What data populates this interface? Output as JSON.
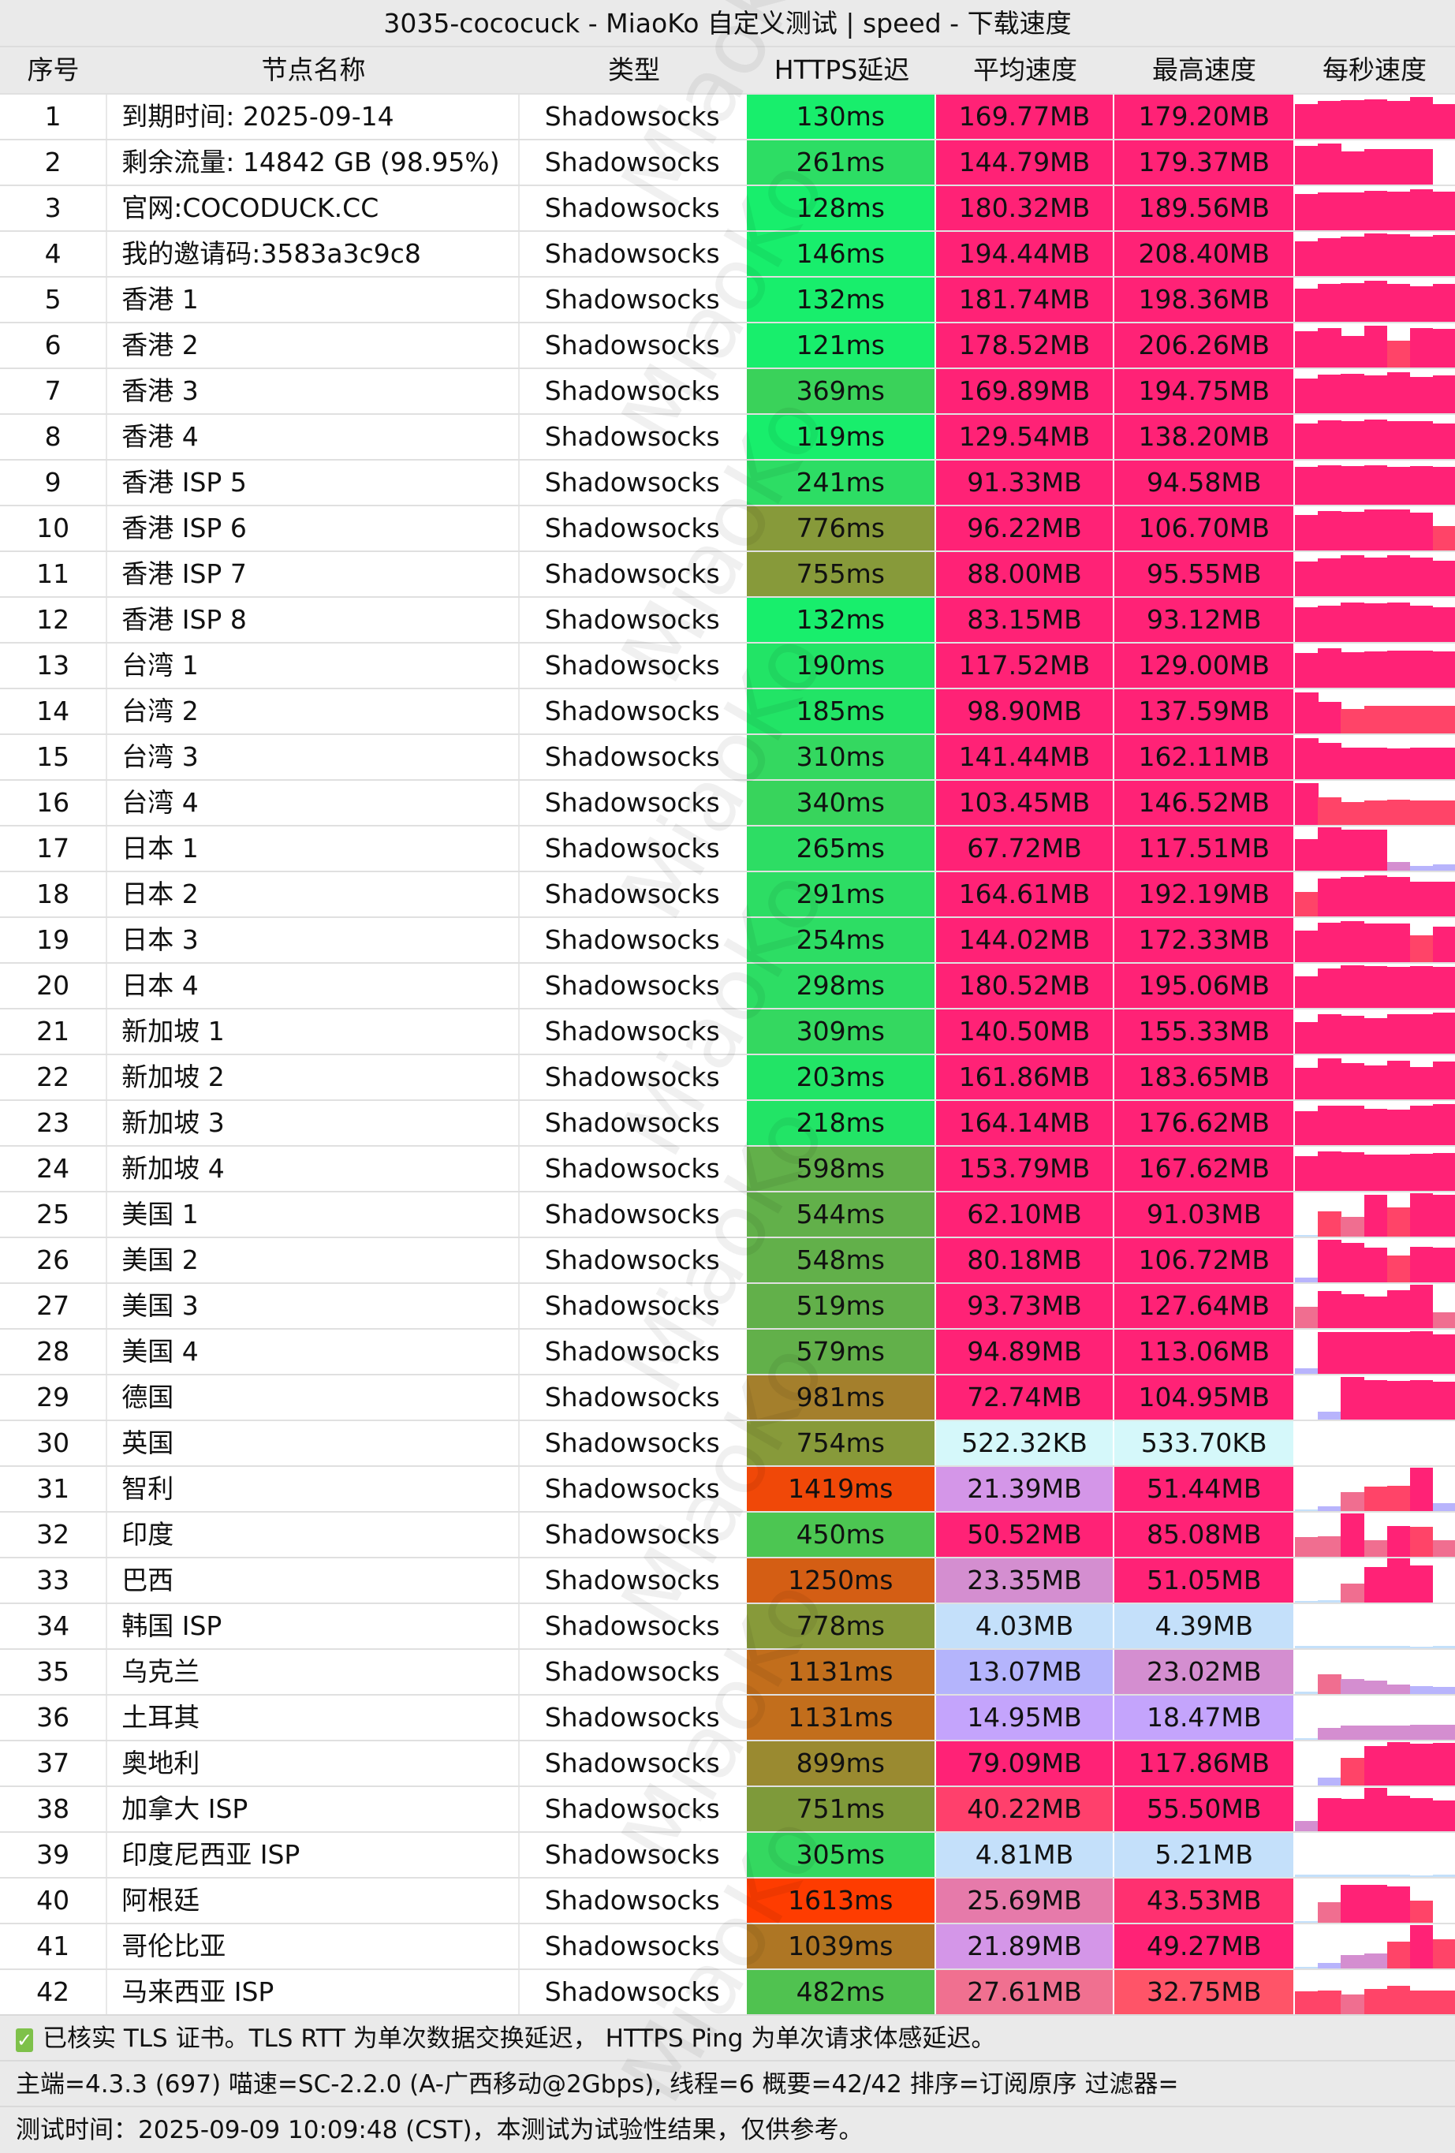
{
  "title": "3035-cococuck - MiaoKo 自定义测试 | speed - 下载速度",
  "headers": [
    "序号",
    "节点名称",
    "类型",
    "HTTPS延迟",
    "平均速度",
    "最高速度",
    "每秒速度"
  ],
  "watermark": "MiaoKo",
  "rows": [
    {
      "idx": "1",
      "name": "到期时间: 2025-09-14",
      "type": "Shadowsocks",
      "latency": "130ms",
      "avg": "169.77MB",
      "max": "179.20MB",
      "lat_color": "#18ee6c",
      "avg_color": "#ff2276",
      "max_color": "#ff2276",
      "bars": [
        0.78,
        0.86,
        0.88,
        0.9,
        0.86,
        0.95,
        0.78
      ]
    },
    {
      "idx": "2",
      "name": "剩余流量: 14842 GB (98.95%)",
      "type": "Shadowsocks",
      "latency": "261ms",
      "avg": "144.79MB",
      "max": "179.37MB",
      "lat_color": "#2ddd64",
      "avg_color": "#ff2276",
      "max_color": "#ff2276",
      "bars": [
        0.88,
        0.92,
        0.75,
        0.8,
        0.8,
        0.8,
        0
      ]
    },
    {
      "idx": "3",
      "name": "官网:COCODUCK.CC",
      "type": "Shadowsocks",
      "latency": "128ms",
      "avg": "180.32MB",
      "max": "189.56MB",
      "lat_color": "#18ee6c",
      "avg_color": "#ff2276",
      "max_color": "#ff2276",
      "bars": [
        0.82,
        0.86,
        0.86,
        0.9,
        0.88,
        0.92,
        0.88
      ]
    },
    {
      "idx": "4",
      "name": "我的邀请码:3583a3c9c8",
      "type": "Shadowsocks",
      "latency": "146ms",
      "avg": "194.44MB",
      "max": "208.40MB",
      "lat_color": "#18ee6c",
      "avg_color": "#ff2276",
      "max_color": "#ff2276",
      "bars": [
        0.78,
        0.86,
        0.9,
        0.96,
        0.95,
        0.9,
        0.92
      ]
    },
    {
      "idx": "5",
      "name": "香港 1",
      "type": "Shadowsocks",
      "latency": "132ms",
      "avg": "181.74MB",
      "max": "198.36MB",
      "lat_color": "#18ee6c",
      "avg_color": "#ff2276",
      "max_color": "#ff2276",
      "bars": [
        0.75,
        0.86,
        0.88,
        0.92,
        0.85,
        0.8,
        0.85
      ]
    },
    {
      "idx": "6",
      "name": "香港 2",
      "type": "Shadowsocks",
      "latency": "121ms",
      "avg": "178.52MB",
      "max": "206.26MB",
      "lat_color": "#18ee6c",
      "avg_color": "#ff2276",
      "max_color": "#ff2276",
      "bars": [
        0.82,
        0.9,
        0.72,
        0.95,
        0.6,
        0.9,
        0.88
      ]
    },
    {
      "idx": "7",
      "name": "香港 3",
      "type": "Shadowsocks",
      "latency": "369ms",
      "avg": "169.89MB",
      "max": "194.75MB",
      "lat_color": "#3ad25a",
      "avg_color": "#ff2276",
      "max_color": "#ff2276",
      "bars": [
        0.78,
        0.88,
        0.9,
        0.86,
        0.92,
        0.82,
        0.85
      ]
    },
    {
      "idx": "8",
      "name": "香港 4",
      "type": "Shadowsocks",
      "latency": "119ms",
      "avg": "129.54MB",
      "max": "138.20MB",
      "lat_color": "#18ee6c",
      "avg_color": "#ff2276",
      "max_color": "#ff2276",
      "bars": [
        0.8,
        0.88,
        0.86,
        0.9,
        0.85,
        0.86,
        0.8
      ]
    },
    {
      "idx": "9",
      "name": "香港 ISP 5",
      "type": "Shadowsocks",
      "latency": "241ms",
      "avg": "91.33MB",
      "max": "94.58MB",
      "lat_color": "#2ddd64",
      "avg_color": "#ff2276",
      "max_color": "#ff2276",
      "bars": [
        0.85,
        0.9,
        0.88,
        0.9,
        0.86,
        0.88,
        0.85
      ]
    },
    {
      "idx": "10",
      "name": "香港 ISP 6",
      "type": "Shadowsocks",
      "latency": "776ms",
      "avg": "96.22MB",
      "max": "106.70MB",
      "lat_color": "#879a3a",
      "avg_color": "#ff2276",
      "max_color": "#ff2276",
      "bars": [
        0.8,
        0.9,
        0.88,
        0.92,
        0.92,
        0.86,
        0.55
      ]
    },
    {
      "idx": "11",
      "name": "香港 ISP 7",
      "type": "Shadowsocks",
      "latency": "755ms",
      "avg": "88.00MB",
      "max": "95.55MB",
      "lat_color": "#879a3a",
      "avg_color": "#ff2276",
      "max_color": "#ff2276",
      "bars": [
        0.78,
        0.86,
        0.92,
        0.88,
        0.92,
        0.88,
        0.8
      ]
    },
    {
      "idx": "12",
      "name": "香港 ISP 8",
      "type": "Shadowsocks",
      "latency": "132ms",
      "avg": "83.15MB",
      "max": "93.12MB",
      "lat_color": "#18ee6c",
      "avg_color": "#ff2276",
      "max_color": "#ff2276",
      "bars": [
        0.78,
        0.82,
        0.9,
        0.88,
        0.9,
        0.82,
        0.78
      ]
    },
    {
      "idx": "13",
      "name": "台湾 1",
      "type": "Shadowsocks",
      "latency": "190ms",
      "avg": "117.52MB",
      "max": "129.00MB",
      "lat_color": "#22e466",
      "avg_color": "#ff2276",
      "max_color": "#ff2276",
      "bars": [
        0.78,
        0.9,
        0.8,
        0.82,
        0.84,
        0.84,
        0.82
      ]
    },
    {
      "idx": "14",
      "name": "台湾 2",
      "type": "Shadowsocks",
      "latency": "185ms",
      "avg": "98.90MB",
      "max": "137.59MB",
      "lat_color": "#22e466",
      "avg_color": "#ff2276",
      "max_color": "#ff2276",
      "bars": [
        0.92,
        0.72,
        0.55,
        0.62,
        0.62,
        0.62,
        0.62
      ]
    },
    {
      "idx": "15",
      "name": "台湾 3",
      "type": "Shadowsocks",
      "latency": "310ms",
      "avg": "141.44MB",
      "max": "162.11MB",
      "lat_color": "#34d860",
      "avg_color": "#ff2276",
      "max_color": "#ff2276",
      "bars": [
        0.92,
        0.82,
        0.72,
        0.72,
        0.7,
        0.72,
        0.72
      ]
    },
    {
      "idx": "16",
      "name": "台湾 4",
      "type": "Shadowsocks",
      "latency": "340ms",
      "avg": "103.45MB",
      "max": "146.52MB",
      "lat_color": "#38d45c",
      "avg_color": "#ff2276",
      "max_color": "#ff2276",
      "bars": [
        0.95,
        0.62,
        0.52,
        0.55,
        0.58,
        0.56,
        0.56
      ]
    },
    {
      "idx": "17",
      "name": "日本 1",
      "type": "Shadowsocks",
      "latency": "265ms",
      "avg": "67.72MB",
      "max": "117.51MB",
      "lat_color": "#2ddd64",
      "avg_color": "#ff2276",
      "max_color": "#ff2276",
      "bars": [
        0.72,
        0.98,
        0.92,
        0.92,
        0.2,
        0.1,
        0.15
      ]
    },
    {
      "idx": "18",
      "name": "日本 2",
      "type": "Shadowsocks",
      "latency": "291ms",
      "avg": "164.61MB",
      "max": "192.19MB",
      "lat_color": "#2ddd64",
      "avg_color": "#ff2276",
      "max_color": "#ff2276",
      "bars": [
        0.55,
        0.85,
        0.9,
        0.92,
        0.9,
        0.78,
        0.78
      ]
    },
    {
      "idx": "19",
      "name": "日本 3",
      "type": "Shadowsocks",
      "latency": "254ms",
      "avg": "144.02MB",
      "max": "172.33MB",
      "lat_color": "#2ddd64",
      "avg_color": "#ff2276",
      "max_color": "#ff2276",
      "bars": [
        0.72,
        0.9,
        0.92,
        0.88,
        0.88,
        0.6,
        0.8
      ]
    },
    {
      "idx": "20",
      "name": "日本 4",
      "type": "Shadowsocks",
      "latency": "298ms",
      "avg": "180.52MB",
      "max": "195.06MB",
      "lat_color": "#2ddd64",
      "avg_color": "#ff2276",
      "max_color": "#ff2276",
      "bars": [
        0.72,
        0.9,
        0.96,
        0.94,
        0.92,
        0.94,
        0.92
      ]
    },
    {
      "idx": "21",
      "name": "新加坡 1",
      "type": "Shadowsocks",
      "latency": "309ms",
      "avg": "140.50MB",
      "max": "155.33MB",
      "lat_color": "#34d860",
      "avg_color": "#ff2276",
      "max_color": "#ff2276",
      "bars": [
        0.72,
        0.9,
        0.86,
        0.8,
        0.9,
        0.9,
        0.92
      ]
    },
    {
      "idx": "22",
      "name": "新加坡 2",
      "type": "Shadowsocks",
      "latency": "203ms",
      "avg": "161.86MB",
      "max": "183.65MB",
      "lat_color": "#22e466",
      "avg_color": "#ff2276",
      "max_color": "#ff2276",
      "bars": [
        0.72,
        0.92,
        0.82,
        0.76,
        0.88,
        0.74,
        0.86
      ]
    },
    {
      "idx": "23",
      "name": "新加坡 3",
      "type": "Shadowsocks",
      "latency": "218ms",
      "avg": "164.14MB",
      "max": "176.62MB",
      "lat_color": "#22e466",
      "avg_color": "#ff2276",
      "max_color": "#ff2276",
      "bars": [
        0.76,
        0.9,
        0.9,
        0.82,
        0.8,
        0.9,
        0.92
      ]
    },
    {
      "idx": "24",
      "name": "新加坡 4",
      "type": "Shadowsocks",
      "latency": "598ms",
      "avg": "153.79MB",
      "max": "167.62MB",
      "lat_color": "#62b04a",
      "avg_color": "#ff2276",
      "max_color": "#ff2276",
      "bars": [
        0.78,
        0.9,
        0.88,
        0.82,
        0.82,
        0.84,
        0.86
      ]
    },
    {
      "idx": "25",
      "name": "美国 1",
      "type": "Shadowsocks",
      "latency": "544ms",
      "avg": "62.10MB",
      "max": "91.03MB",
      "lat_color": "#62b04a",
      "avg_color": "#ff2276",
      "max_color": "#ff2276",
      "bars": [
        0.04,
        0.58,
        0.45,
        0.95,
        0.66,
        0.98,
        0.95
      ]
    },
    {
      "idx": "26",
      "name": "美国 2",
      "type": "Shadowsocks",
      "latency": "548ms",
      "avg": "80.18MB",
      "max": "106.72MB",
      "lat_color": "#62b04a",
      "avg_color": "#ff2276",
      "max_color": "#ff2276",
      "bars": [
        0.1,
        0.96,
        0.9,
        0.78,
        0.6,
        0.8,
        0.78
      ]
    },
    {
      "idx": "27",
      "name": "美国 3",
      "type": "Shadowsocks",
      "latency": "519ms",
      "avg": "93.73MB",
      "max": "127.64MB",
      "lat_color": "#62b04a",
      "avg_color": "#ff2276",
      "max_color": "#ff2276",
      "bars": [
        0.48,
        0.84,
        0.76,
        0.72,
        0.86,
        0.98,
        0.35
      ]
    },
    {
      "idx": "28",
      "name": "美国 4",
      "type": "Shadowsocks",
      "latency": "579ms",
      "avg": "94.89MB",
      "max": "113.06MB",
      "lat_color": "#62b04a",
      "avg_color": "#ff2276",
      "max_color": "#ff2276",
      "bars": [
        0.12,
        0.94,
        0.94,
        0.94,
        0.94,
        0.96,
        0.9
      ]
    },
    {
      "idx": "29",
      "name": "德国",
      "type": "Shadowsocks",
      "latency": "981ms",
      "avg": "72.74MB",
      "max": "104.95MB",
      "lat_color": "#a47f2c",
      "avg_color": "#ff2276",
      "max_color": "#ff2276",
      "bars": [
        0,
        0.18,
        0.96,
        0.9,
        0.88,
        0.9,
        0.86
      ]
    },
    {
      "idx": "30",
      "name": "英国",
      "type": "Shadowsocks",
      "latency": "754ms",
      "avg": "522.32KB",
      "max": "533.70KB",
      "lat_color": "#879a3a",
      "avg_color": "#d5f8fa",
      "max_color": "#d5f8fa",
      "bars": [
        0,
        0,
        0,
        0,
        0,
        0,
        0
      ]
    },
    {
      "idx": "31",
      "name": "智利",
      "type": "Shadowsocks",
      "latency": "1419ms",
      "avg": "21.39MB",
      "max": "51.44MB",
      "lat_color": "#f04808",
      "avg_color": "#d496e8",
      "max_color": "#ff2276",
      "bars": [
        0.03,
        0.1,
        0.42,
        0.55,
        0.58,
        0.98,
        0.18
      ]
    },
    {
      "idx": "32",
      "name": "印度",
      "type": "Shadowsocks",
      "latency": "450ms",
      "avg": "50.52MB",
      "max": "85.08MB",
      "lat_color": "#4cc652",
      "avg_color": "#ff2276",
      "max_color": "#ff2276",
      "bars": [
        0.44,
        0.46,
        0.98,
        0.38,
        0.7,
        0.68,
        0.38
      ]
    },
    {
      "idx": "33",
      "name": "巴西",
      "type": "Shadowsocks",
      "latency": "1250ms",
      "avg": "23.35MB",
      "max": "51.05MB",
      "lat_color": "#d45e14",
      "avg_color": "#d48ed0",
      "max_color": "#ff2276",
      "bars": [
        0.03,
        0.06,
        0.42,
        0.8,
        1.0,
        0.84,
        0
      ]
    },
    {
      "idx": "34",
      "name": "韩国 ISP",
      "type": "Shadowsocks",
      "latency": "778ms",
      "avg": "4.03MB",
      "max": "4.39MB",
      "lat_color": "#879a3a",
      "avg_color": "#c4e0fa",
      "max_color": "#c4e0fa",
      "bars": [
        0.06,
        0.06,
        0.06,
        0.06,
        0.06,
        0.04,
        0.06
      ]
    },
    {
      "idx": "35",
      "name": "乌克兰",
      "type": "Shadowsocks",
      "latency": "1131ms",
      "avg": "13.07MB",
      "max": "23.02MB",
      "lat_color": "#c26e1c",
      "avg_color": "#b4b4fc",
      "max_color": "#d48ed0",
      "bars": [
        0.06,
        0.44,
        0.34,
        0.3,
        0.22,
        0.18,
        0.16
      ]
    },
    {
      "idx": "36",
      "name": "土耳其",
      "type": "Shadowsocks",
      "latency": "1131ms",
      "avg": "14.95MB",
      "max": "18.47MB",
      "lat_color": "#c26e1c",
      "avg_color": "#c4a4fc",
      "max_color": "#c4a4fc",
      "bars": [
        0.04,
        0.26,
        0.32,
        0.32,
        0.32,
        0.34,
        0.34
      ]
    },
    {
      "idx": "37",
      "name": "奥地利",
      "type": "Shadowsocks",
      "latency": "899ms",
      "avg": "79.09MB",
      "max": "117.86MB",
      "lat_color": "#9a8a30",
      "avg_color": "#ff2276",
      "max_color": "#ff2276",
      "bars": [
        0,
        0.18,
        0.62,
        0.9,
        0.98,
        0.94,
        0.96
      ]
    },
    {
      "idx": "38",
      "name": "加拿大 ISP",
      "type": "Shadowsocks",
      "latency": "751ms",
      "avg": "40.22MB",
      "max": "55.50MB",
      "lat_color": "#7e9a3a",
      "avg_color": "#ff406c",
      "max_color": "#ff2276",
      "bars": [
        0.24,
        0.75,
        0.74,
        0.98,
        0.8,
        0.75,
        0.7
      ]
    },
    {
      "idx": "39",
      "name": "印度尼西亚 ISP",
      "type": "Shadowsocks",
      "latency": "305ms",
      "avg": "4.81MB",
      "max": "5.21MB",
      "lat_color": "#34d860",
      "avg_color": "#c4e0fa",
      "max_color": "#c4e0fa",
      "bars": [
        0.06,
        0.06,
        0.06,
        0.06,
        0.06,
        0.04,
        0.06
      ]
    },
    {
      "idx": "40",
      "name": "阿根廷",
      "type": "Shadowsocks",
      "latency": "1613ms",
      "avg": "25.69MB",
      "max": "43.53MB",
      "lat_color": "#fe3c00",
      "avg_color": "#e67aaa",
      "max_color": "#ff3070",
      "bars": [
        0.03,
        0.46,
        0.86,
        0.86,
        0.82,
        0.5,
        0
      ]
    },
    {
      "idx": "41",
      "name": "哥伦比亚",
      "type": "Shadowsocks",
      "latency": "1039ms",
      "avg": "21.89MB",
      "max": "49.27MB",
      "lat_color": "#ae7624",
      "avg_color": "#d496e8",
      "max_color": "#ff2276",
      "bars": [
        0.03,
        0.12,
        0.3,
        0.34,
        0.6,
        0.98,
        0.66
      ]
    },
    {
      "idx": "42",
      "name": "马来西亚 ISP",
      "type": "Shadowsocks",
      "latency": "482ms",
      "avg": "27.61MB",
      "max": "32.75MB",
      "lat_color": "#50c250",
      "avg_color": "#f07090",
      "max_color": "#ff5468",
      "bars": [
        0.52,
        0.54,
        0.44,
        0.58,
        0.65,
        0.53,
        0.54
      ]
    }
  ],
  "footer": {
    "check_icon": "✓",
    "line1": "已核实 TLS 证书。TLS RTT 为单次数据交换延迟， HTTPS Ping 为单次请求体感延迟。",
    "line2": "主端=4.3.3 (697) 喵速=SC-2.2.0 (A-广西移动@2Gbps), 线程=6 概要=42/42 排序=订阅原序 过滤器=",
    "line3": "测试时间：2025-09-09 10:09:48 (CST)，本测试为试验性结果，仅供参考。"
  },
  "chart_data": {
    "type": "table",
    "title": "3035-cococuck - MiaoKo 自定义测试 | speed - 下载速度",
    "columns": [
      "序号",
      "节点名称",
      "类型",
      "HTTPS延迟",
      "平均速度",
      "最高速度",
      "每秒速度"
    ],
    "summary": "42 nodes, all Shadowsocks; latency 119ms–1613ms; avg speed 522.32KB–194.44MB"
  }
}
